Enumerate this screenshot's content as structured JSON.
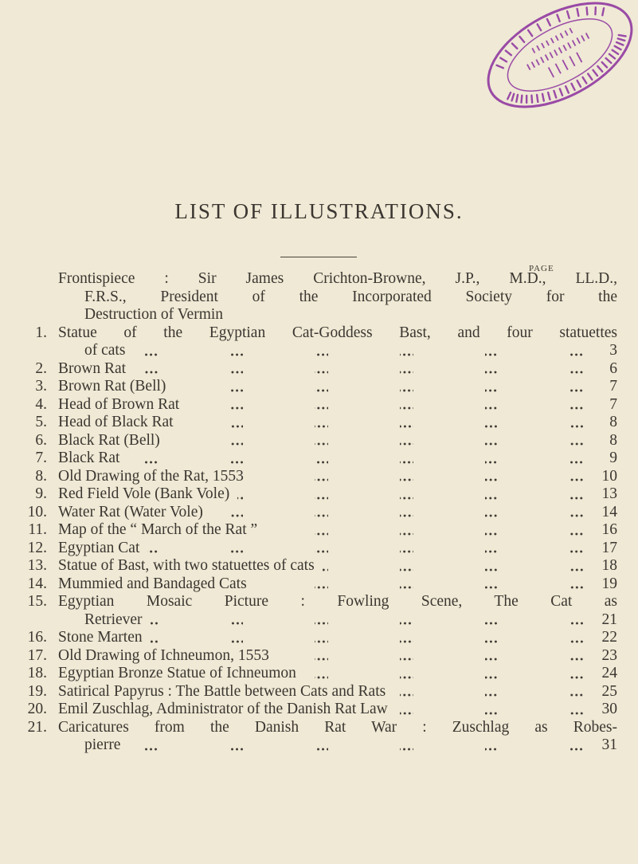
{
  "stamp": {
    "text": "LIBRARY OF THE BRITISH MEDICAL ASSOCIATION — PRESENTED BY THE EDITOR OF B. M. J.",
    "color": "#9a4aa6"
  },
  "title": "LIST OF ILLUSTRATIONS.",
  "page_header": "PAGE",
  "frontispiece": [
    "Frontispiece : Sir James Crichton-Browne, J.P., M.D., LL.D.,",
    "F.R.S., President of the Incorporated Society for the",
    "Destruction of Vermin"
  ],
  "entries": [
    {
      "num": "1.",
      "lines": [
        "Statue of the Egyptian Cat-Goddess Bast, and four statuettes",
        "of cats"
      ],
      "page": "3"
    },
    {
      "num": "2.",
      "lines": [
        "Brown Rat"
      ],
      "page": "6"
    },
    {
      "num": "3.",
      "lines": [
        "Brown Rat (Bell)"
      ],
      "page": "7"
    },
    {
      "num": "4.",
      "lines": [
        "Head of Brown Rat"
      ],
      "page": "7"
    },
    {
      "num": "5.",
      "lines": [
        "Head of Black Rat"
      ],
      "page": "8"
    },
    {
      "num": "6.",
      "lines": [
        "Black Rat (Bell)"
      ],
      "page": "8"
    },
    {
      "num": "7.",
      "lines": [
        "Black Rat"
      ],
      "page": "9"
    },
    {
      "num": "8.",
      "lines": [
        "Old Drawing of the Rat, 1553"
      ],
      "page": "10"
    },
    {
      "num": "9.",
      "lines": [
        "Red Field Vole (Bank Vole)"
      ],
      "page": "13"
    },
    {
      "num": "10.",
      "lines": [
        "Water Rat (Water Vole)"
      ],
      "page": "14"
    },
    {
      "num": "11.",
      "lines": [
        "Map of the “ March of the Rat ”"
      ],
      "page": "16"
    },
    {
      "num": "12.",
      "lines": [
        "Egyptian Cat"
      ],
      "page": "17"
    },
    {
      "num": "13.",
      "lines": [
        "Statue of Bast, with two statuettes of cats"
      ],
      "page": "18"
    },
    {
      "num": "14.",
      "lines": [
        "Mummied and Bandaged Cats"
      ],
      "page": "19"
    },
    {
      "num": "15.",
      "lines": [
        "Egyptian Mosaic Picture : Fowling Scene, The Cat as",
        "Retriever"
      ],
      "page": "21"
    },
    {
      "num": "16.",
      "lines": [
        "Stone Marten"
      ],
      "page": "22"
    },
    {
      "num": "17.",
      "lines": [
        "Old Drawing of Ichneumon, 1553"
      ],
      "page": "23"
    },
    {
      "num": "18.",
      "lines": [
        "Egyptian Bronze Statue of Ichneumon"
      ],
      "page": "24"
    },
    {
      "num": "19.",
      "lines": [
        "Satirical Papyrus : The Battle between Cats and Rats"
      ],
      "page": "25"
    },
    {
      "num": "20.",
      "lines": [
        "Emil Zuschlag, Administrator of the Danish Rat Law"
      ],
      "page": "30"
    },
    {
      "num": "21.",
      "lines": [
        "Caricatures from the Danish Rat War : Zuschlag as Robes-",
        "pierre"
      ],
      "page": "31"
    }
  ]
}
